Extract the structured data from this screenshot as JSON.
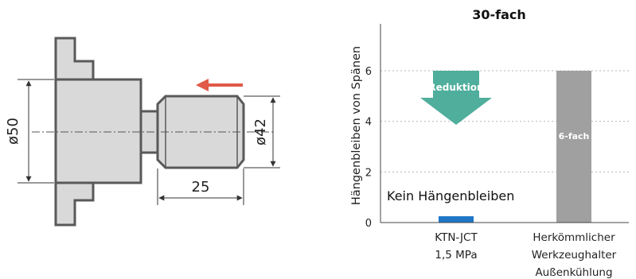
{
  "drawing": {
    "dim_large_diameter": "ø50",
    "dim_small_diameter": "ø42",
    "dim_length": "25",
    "colors": {
      "part_fill": "#d9d9d9",
      "part_stroke": "#595959",
      "arrow": "#e05a47"
    }
  },
  "chart_data": {
    "type": "bar",
    "title": "30-fach",
    "xlabel": "",
    "ylabel": "Hängenbleiben von Spänen",
    "ylim": [
      0,
      7
    ],
    "yticks": [
      0,
      2,
      4,
      6
    ],
    "grid": true,
    "categories": [
      {
        "lines": [
          "KTN-JCT",
          "1,5 MPa"
        ]
      },
      {
        "lines": [
          "Herkömmlicher",
          "Werkzeughalter",
          "Außenkühlung"
        ]
      }
    ],
    "values": [
      0.25,
      6
    ],
    "bar_colors": [
      "#1f77c8",
      "#a0a0a0"
    ],
    "bar_labels": [
      "",
      "6-fach"
    ],
    "annotations": {
      "no_sticking": "Kein Hängenbleiben",
      "reduction": "Reduktion",
      "reduction_color": "#4fae9c"
    }
  }
}
